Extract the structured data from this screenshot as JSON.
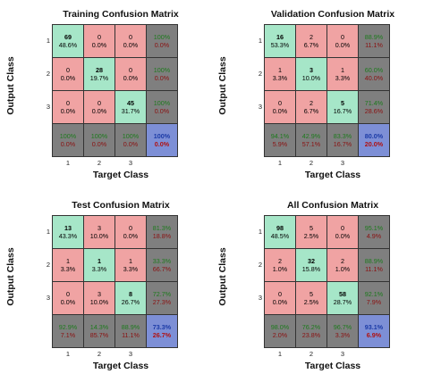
{
  "colors": {
    "correct": "#a6e6c8",
    "incorrect": "#f0a3a3",
    "summary": "#7f7f7f",
    "overall": "#7d8fd6",
    "summary_pos": "#1d7a1d",
    "summary_neg": "#8a1010"
  },
  "chart_data": [
    {
      "type": "table",
      "title": "Training Confusion Matrix",
      "xlabel": "Target Class",
      "ylabel": "Output Class",
      "class_ticks": [
        "1",
        "2",
        "3"
      ],
      "counts": [
        [
          69,
          0,
          0
        ],
        [
          0,
          28,
          0
        ],
        [
          0,
          0,
          45
        ]
      ],
      "cell_percents": [
        [
          "48.6%",
          "0.0%",
          "0.0%"
        ],
        [
          "0.0%",
          "19.7%",
          "0.0%"
        ],
        [
          "0.0%",
          "0.0%",
          "31.7%"
        ]
      ],
      "row_summary": [
        [
          "100%",
          "0.0%"
        ],
        [
          "100%",
          "0.0%"
        ],
        [
          "100%",
          "0.0%"
        ]
      ],
      "col_summary": [
        [
          "100%",
          "0.0%"
        ],
        [
          "100%",
          "0.0%"
        ],
        [
          "100%",
          "0.0%"
        ]
      ],
      "overall": [
        "100%",
        "0.0%"
      ]
    },
    {
      "type": "table",
      "title": "Validation Confusion Matrix",
      "xlabel": "Target Class",
      "ylabel": "Output Class",
      "class_ticks": [
        "1",
        "2",
        "3"
      ],
      "counts": [
        [
          16,
          2,
          0
        ],
        [
          1,
          3,
          1
        ],
        [
          0,
          2,
          5
        ]
      ],
      "cell_percents": [
        [
          "53.3%",
          "6.7%",
          "0.0%"
        ],
        [
          "3.3%",
          "10.0%",
          "3.3%"
        ],
        [
          "0.0%",
          "6.7%",
          "16.7%"
        ]
      ],
      "row_summary": [
        [
          "88.9%",
          "11.1%"
        ],
        [
          "60.0%",
          "40.0%"
        ],
        [
          "71.4%",
          "28.6%"
        ]
      ],
      "col_summary": [
        [
          "94.1%",
          "5.9%"
        ],
        [
          "42.9%",
          "57.1%"
        ],
        [
          "83.3%",
          "16.7%"
        ]
      ],
      "overall": [
        "80.0%",
        "20.0%"
      ]
    },
    {
      "type": "table",
      "title": "Test Confusion Matrix",
      "xlabel": "Target Class",
      "ylabel": "Output Class",
      "class_ticks": [
        "1",
        "2",
        "3"
      ],
      "counts": [
        [
          13,
          3,
          0
        ],
        [
          1,
          1,
          1
        ],
        [
          0,
          3,
          8
        ]
      ],
      "cell_percents": [
        [
          "43.3%",
          "10.0%",
          "0.0%"
        ],
        [
          "3.3%",
          "3.3%",
          "3.3%"
        ],
        [
          "0.0%",
          "10.0%",
          "26.7%"
        ]
      ],
      "row_summary": [
        [
          "81.3%",
          "18.8%"
        ],
        [
          "33.3%",
          "66.7%"
        ],
        [
          "72.7%",
          "27.3%"
        ]
      ],
      "col_summary": [
        [
          "92.9%",
          "7.1%"
        ],
        [
          "14.3%",
          "85.7%"
        ],
        [
          "88.9%",
          "11.1%"
        ]
      ],
      "overall": [
        "73.3%",
        "26.7%"
      ]
    },
    {
      "type": "table",
      "title": "All Confusion Matrix",
      "xlabel": "Target Class",
      "ylabel": "Output Class",
      "class_ticks": [
        "1",
        "2",
        "3"
      ],
      "counts": [
        [
          98,
          5,
          0
        ],
        [
          2,
          32,
          2
        ],
        [
          0,
          5,
          58
        ]
      ],
      "cell_percents": [
        [
          "48.5%",
          "2.5%",
          "0.0%"
        ],
        [
          "1.0%",
          "15.8%",
          "1.0%"
        ],
        [
          "0.0%",
          "2.5%",
          "28.7%"
        ]
      ],
      "row_summary": [
        [
          "95.1%",
          "4.9%"
        ],
        [
          "88.9%",
          "11.1%"
        ],
        [
          "92.1%",
          "7.9%"
        ]
      ],
      "col_summary": [
        [
          "98.0%",
          "2.0%"
        ],
        [
          "76.2%",
          "23.8%"
        ],
        [
          "96.7%",
          "3.3%"
        ]
      ],
      "overall": [
        "93.1%",
        "6.9%"
      ]
    }
  ]
}
